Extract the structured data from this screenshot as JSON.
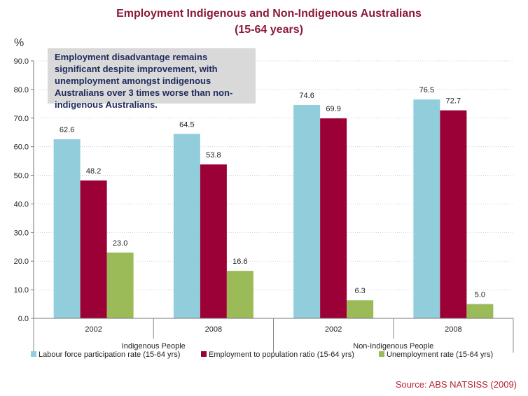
{
  "chart_data": {
    "type": "bar",
    "title_lines": [
      "Employment Indigenous and Non-Indigenous Australians",
      "(15-64 years)"
    ],
    "ylabel": "%",
    "ylim": [
      0,
      90
    ],
    "yticks": [
      "0.0",
      "10.0",
      "20.0",
      "30.0",
      "40.0",
      "50.0",
      "60.0",
      "70.0",
      "80.0",
      "90.0"
    ],
    "grid": true,
    "groups": [
      "Indigenous People",
      "Non-Indigenous People"
    ],
    "categories": [
      "2002",
      "2008",
      "2002",
      "2008"
    ],
    "series": [
      {
        "name": "Labour force participation rate (15-64 yrs)",
        "color": "#92cddc",
        "values": [
          62.6,
          64.5,
          74.6,
          76.5
        ],
        "labels": [
          "62.6",
          "64.5",
          "74.6",
          "76.5"
        ]
      },
      {
        "name": "Employment to population ratio (15-64 yrs)",
        "color": "#9b0036",
        "values": [
          48.2,
          53.8,
          69.9,
          72.7
        ],
        "labels": [
          "48.2",
          "53.8",
          "69.9",
          "72.7"
        ]
      },
      {
        "name": "Unemployment rate (15-64 yrs)",
        "color": "#9bbb59",
        "values": [
          23.0,
          16.6,
          6.3,
          5.0
        ],
        "labels": [
          "23.0",
          "16.6",
          "6.3",
          "5.0"
        ]
      }
    ],
    "legend_position": "bottom",
    "annotation": "Employment disadvantage remains significant despite improvement, with unemployment amongst indigenous Australians over 3 times worse than non-indigenous Australians.",
    "source": "Source: ABS  NATSISS (2009)"
  }
}
